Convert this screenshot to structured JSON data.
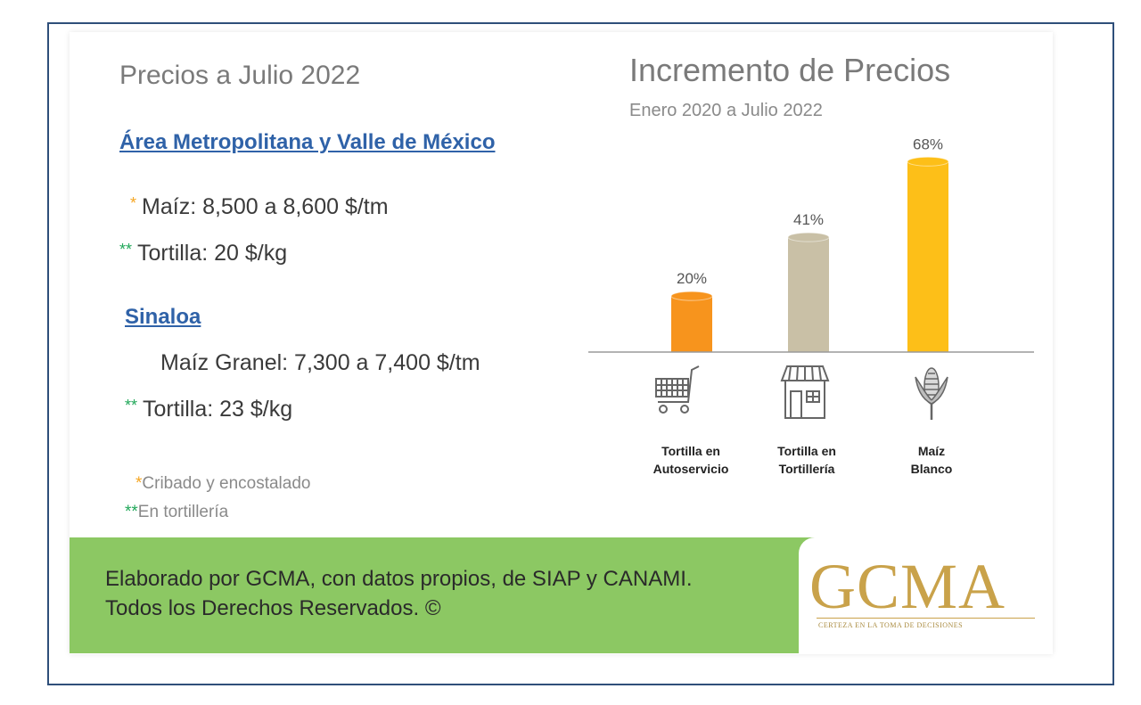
{
  "left": {
    "title": "Precios a Julio 2022",
    "region1": "Área Metropolitana y Valle de México",
    "r1_maiz_marker": "*",
    "r1_maiz": "Maíz: 8,500 a 8,600 $/tm",
    "r1_tortilla_marker": "**",
    "r1_tortilla": "Tortilla: 20 $/kg",
    "region2": "Sinaloa",
    "r2_maiz": "Maíz Granel: 7,300 a 7,400 $/tm",
    "r2_tortilla_marker": "**",
    "r2_tortilla": "Tortilla: 23 $/kg",
    "note1_marker": "*",
    "note1": "Cribado y encostalado",
    "note2_marker": "**",
    "note2": "En tortillería"
  },
  "chart_data": {
    "type": "bar",
    "title": "Incremento de Precios",
    "subtitle": "Enero 2020 a Julio 2022",
    "categories": [
      "Tortilla en Autoservicio",
      "Tortilla en Tortillería",
      "Maíz Blanco"
    ],
    "category_lines": [
      [
        "Tortilla en",
        "Autoservicio"
      ],
      [
        "Tortilla en",
        "Tortillería"
      ],
      [
        "Maíz",
        "Blanco"
      ]
    ],
    "values": [
      20,
      41,
      68
    ],
    "value_labels": [
      "20%",
      "41%",
      "68%"
    ],
    "colors": [
      "#f7941d",
      "#c9c0a6",
      "#fdbf18"
    ],
    "icons": [
      "shopping-cart-icon",
      "store-icon",
      "corn-icon"
    ],
    "ylim": [
      0,
      70
    ]
  },
  "footer": {
    "line1": "Elaborado por GCMA, con datos propios, de SIAP y CANAMI.",
    "line2": "Todos los Derechos Reservados. ©",
    "logo_text": "GCMA",
    "logo_tagline": "CERTEZA EN LA TOMA DE DECISIONES"
  }
}
